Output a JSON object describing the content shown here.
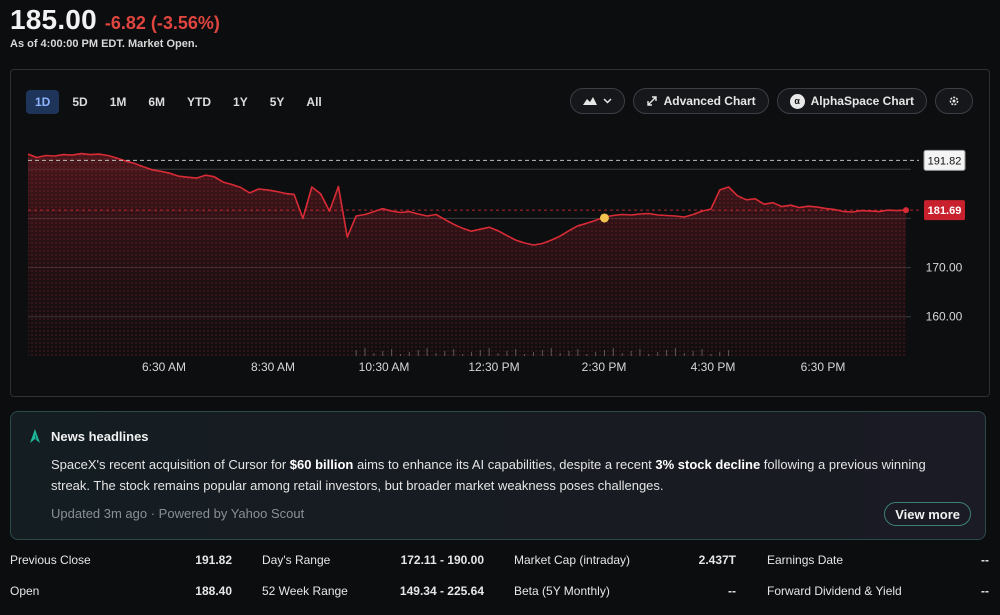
{
  "quote": {
    "price": "185.00",
    "change": "-6.82",
    "change_pct": "(-3.56%)",
    "as_of": "As of 4:00:00 PM EDT. Market Open."
  },
  "ranges": [
    "1D",
    "5D",
    "1M",
    "6M",
    "YTD",
    "1Y",
    "5Y",
    "All"
  ],
  "active_range": "1D",
  "tools": {
    "chart_type_icon": "mountain-icon",
    "advanced_chart": "Advanced Chart",
    "alphaspace_chart": "AlphaSpace Chart",
    "settings_icon": "gear-icon"
  },
  "chart_data": {
    "type": "area",
    "x_tick_labels": [
      "6:30 AM",
      "8:30 AM",
      "10:30 AM",
      "12:30 PM",
      "2:30 PM",
      "4:30 PM",
      "6:30 PM"
    ],
    "y_tick_labels": [
      "170.00",
      "160.00"
    ],
    "ylim": [
      152,
      198
    ],
    "previous_close": 191.82,
    "previous_close_label": "191.82",
    "current_price": 181.69,
    "current_price_label": "181.69",
    "marker_value": 180.1,
    "line_color": "#d92b36",
    "marker_color": "#f2c14e",
    "series": [
      {
        "values": [
          193.1,
          192.4,
          192.8,
          192.7,
          193.0,
          192.9,
          193.2,
          193.0,
          193.1,
          192.8,
          192.3,
          191.7,
          191.2,
          190.5,
          189.9,
          189.6,
          189.2,
          188.6,
          188.4,
          188.2,
          188.8,
          188.5,
          187.4,
          186.9,
          186.3,
          185.2,
          186.0,
          185.8,
          185.5,
          185.1,
          184.9,
          180.0,
          186.4,
          185.0,
          181.5,
          186.5,
          176.2,
          180.5,
          180.8,
          181.4,
          182.0,
          181.5,
          181.2,
          181.4,
          180.9,
          180.5,
          180.8,
          179.8,
          178.8,
          178.0,
          177.4,
          177.8,
          178.2,
          177.5,
          176.5,
          175.6,
          175.0,
          174.6,
          174.9,
          175.6,
          176.4,
          177.5,
          178.5,
          179.0,
          179.6,
          180.3,
          180.6,
          180.8,
          180.7,
          180.9,
          181.0,
          180.7,
          180.6,
          180.5,
          180.3,
          180.8,
          181.5,
          181.9,
          185.8,
          186.4,
          184.6,
          183.8,
          184.0,
          182.9,
          183.2,
          182.4,
          182.7,
          182.2,
          182.5,
          182.3,
          182.0,
          181.8,
          181.4,
          181.3,
          181.6,
          181.5,
          181.4,
          181.7,
          181.6,
          181.69
        ]
      }
    ]
  },
  "news": {
    "icon": "sparkle-icon",
    "title": "News headlines",
    "body_part1": "SpaceX's recent acquisition of Cursor for ",
    "body_bold1": "$60 billion",
    "body_part2": " aims to enhance its AI capabilities, despite a recent ",
    "body_bold2": "3% stock decline",
    "body_part3": " following a previous winning streak. The stock remains popular among retail investors, but broader market weakness poses challenges.",
    "footer": "Updated 3m ago · Powered by Yahoo Scout",
    "view_more": "View more"
  },
  "stats": [
    [
      {
        "label": "Previous Close",
        "value": "191.82"
      },
      {
        "label": "Day's Range",
        "value": "172.11 - 190.00"
      },
      {
        "label": "Market Cap (intraday)",
        "value": "2.437T"
      },
      {
        "label": "Earnings Date",
        "value": "--"
      }
    ],
    [
      {
        "label": "Open",
        "value": "188.40"
      },
      {
        "label": "52 Week Range",
        "value": "149.34 - 225.64"
      },
      {
        "label": "Beta (5Y Monthly)",
        "value": "--"
      },
      {
        "label": "Forward Dividend & Yield",
        "value": "--"
      }
    ]
  ]
}
